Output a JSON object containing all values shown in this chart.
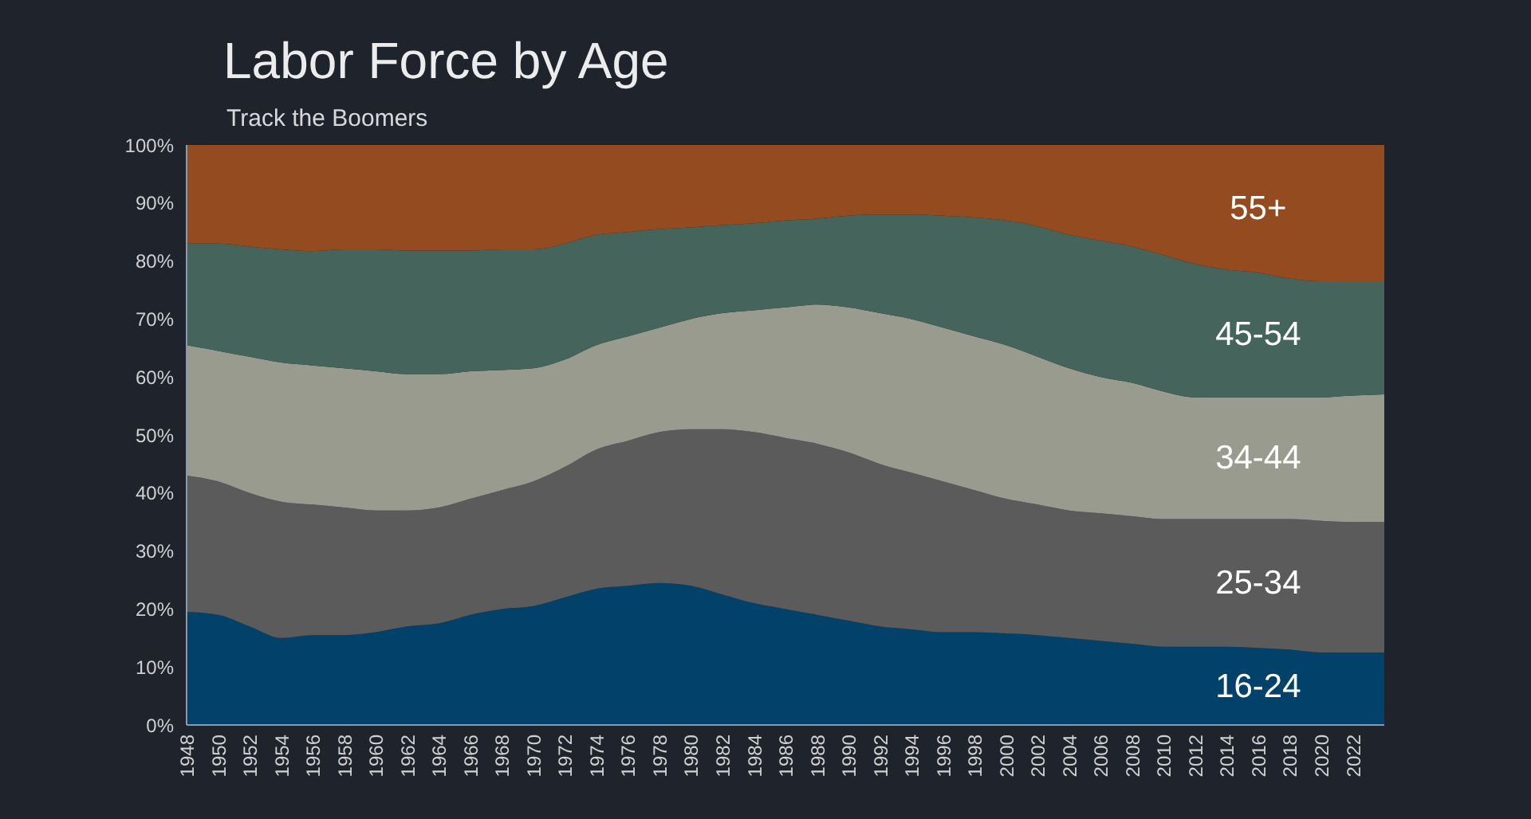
{
  "chart_data": {
    "type": "area",
    "stacked": true,
    "title": "Labor Force by Age",
    "subtitle": "Track the Boomers",
    "categories": [
      "1948",
      "1950",
      "1952",
      "1954",
      "1956",
      "1958",
      "1960",
      "1962",
      "1964",
      "1966",
      "1968",
      "1970",
      "1972",
      "1974",
      "1976",
      "1978",
      "1980",
      "1982",
      "1984",
      "1986",
      "1988",
      "1990",
      "1992",
      "1994",
      "1996",
      "1998",
      "2000",
      "2002",
      "2004",
      "2006",
      "2008",
      "2010",
      "2012",
      "2014",
      "2016",
      "2018",
      "2020",
      "2022",
      null
    ],
    "series": [
      {
        "name": "16-24",
        "color": "#02426a",
        "values": [
          19.5,
          19,
          17,
          15,
          15.5,
          15.5,
          16,
          17,
          17.5,
          19,
          20,
          20.5,
          22,
          23.5,
          24,
          24.5,
          24,
          22.5,
          21,
          20,
          19,
          18,
          17,
          16.5,
          16,
          16,
          15.8,
          15.5,
          15,
          14.5,
          14,
          13.5,
          13.5,
          13.5,
          13.3,
          13,
          12.5,
          12.5,
          12.5
        ]
      },
      {
        "name": "25-34",
        "color": "#5b5b5b",
        "values": [
          23.5,
          23,
          23,
          23.5,
          22.5,
          22,
          21,
          20,
          20,
          20,
          20.5,
          21.5,
          22.5,
          24,
          25,
          26,
          27,
          28.5,
          29.5,
          29.5,
          29.5,
          29,
          28,
          27,
          26,
          24.5,
          23.2,
          22.5,
          22,
          22,
          22,
          22,
          22,
          22,
          22.2,
          22.5,
          22.7,
          22.5,
          22.5
        ]
      },
      {
        "name": "34-44",
        "color": "#9a9b8f",
        "values": [
          22.5,
          22.5,
          23.5,
          24,
          24,
          24,
          24,
          23.5,
          23,
          22,
          20.7,
          19.5,
          18.5,
          18,
          18,
          18,
          19,
          20,
          21,
          22.5,
          24,
          25,
          26,
          26.5,
          26.5,
          26.5,
          26.5,
          25.5,
          24.5,
          23.5,
          23,
          22,
          21,
          21,
          21,
          21,
          21.3,
          21.8,
          22
        ]
      },
      {
        "name": "45-54",
        "color": "#44645c",
        "values": [
          17.5,
          18.5,
          19,
          19.5,
          19.7,
          20.5,
          21,
          21.3,
          21.3,
          20.8,
          20.8,
          20.5,
          20,
          19,
          18,
          17,
          15.8,
          15.2,
          15,
          15,
          14.8,
          15.8,
          17,
          18,
          19.3,
          20.5,
          21.5,
          22.5,
          23,
          23.5,
          23.5,
          23.5,
          23,
          22,
          21.5,
          20.5,
          20,
          19.7,
          19.5
        ]
      },
      {
        "name": "55+",
        "color": "#934b1f",
        "values": [
          17,
          17,
          17.5,
          18,
          18.3,
          18,
          18,
          18.2,
          18.2,
          18.2,
          18,
          18,
          17,
          15.5,
          15,
          14.5,
          14.2,
          13.8,
          13.5,
          13,
          12.7,
          12.2,
          12,
          12,
          12.2,
          12.5,
          13,
          14,
          15.5,
          16.5,
          17.5,
          19,
          20.5,
          21.5,
          22,
          23,
          23.5,
          23.5,
          23.5
        ]
      }
    ],
    "ylim": [
      0,
      100
    ],
    "yticks": [
      {
        "value": 0,
        "label": "0%"
      },
      {
        "value": 10,
        "label": "10%"
      },
      {
        "value": 20,
        "label": "20%"
      },
      {
        "value": 30,
        "label": "30%"
      },
      {
        "value": 40,
        "label": "40%"
      },
      {
        "value": 50,
        "label": "50%"
      },
      {
        "value": 60,
        "label": "60%"
      },
      {
        "value": 70,
        "label": "70%"
      },
      {
        "value": 80,
        "label": "80%"
      },
      {
        "value": 90,
        "label": "90%"
      },
      {
        "value": 100,
        "label": "100%"
      }
    ],
    "grid": false,
    "legend": false
  }
}
